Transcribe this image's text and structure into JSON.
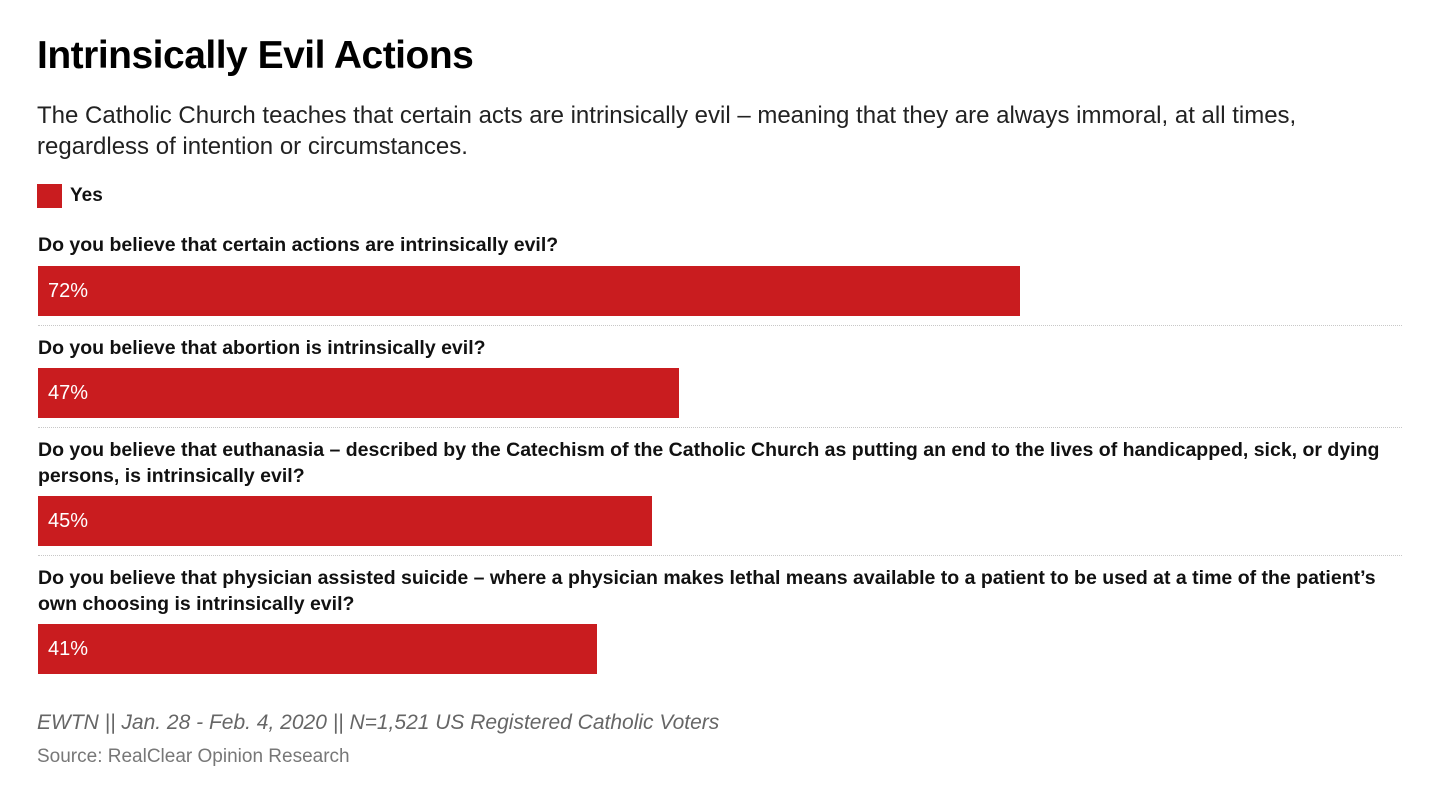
{
  "header": {
    "title": "Intrinsically Evil Actions",
    "subtitle": "The Catholic Church teaches that certain acts are intrinsically evil – meaning that they are always immoral, at all times, regardless of intention or circumstances."
  },
  "legend": {
    "label": "Yes",
    "color": "#c91c1f"
  },
  "chart_data": {
    "type": "bar",
    "orientation": "horizontal",
    "categories": [
      "Do you believe that certain actions are intrinsically evil?",
      "Do you believe that abortion is intrinsically evil?",
      "Do you believe that euthanasia – described by the Catechism of the Catholic Church as putting an end to the lives of handicapped, sick, or dying persons, is intrinsically evil?",
      "Do you believe that physician assisted suicide – where a physician makes lethal means available to a patient to be used at a time of the patient’s own choosing is intrinsically evil?"
    ],
    "series": [
      {
        "name": "Yes",
        "values": [
          72,
          47,
          45,
          41
        ],
        "labels": [
          "72%",
          "47%",
          "45%",
          "41%"
        ],
        "color": "#c91c1f"
      }
    ],
    "xlim": [
      0,
      100
    ],
    "grid": false,
    "legend_position": "top-left"
  },
  "footer": {
    "note": "EWTN || Jan. 28 - Feb. 4, 2020 || N=1,521 US Registered Catholic Voters",
    "source": "Source: RealClear Opinion Research"
  }
}
